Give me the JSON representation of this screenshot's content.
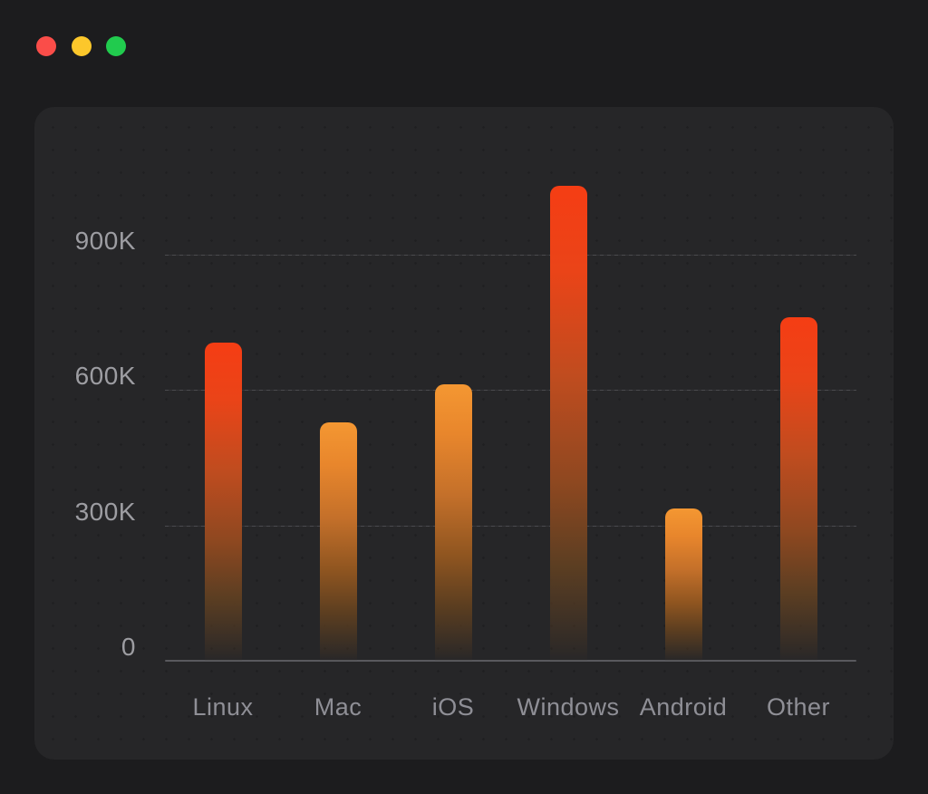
{
  "window": {
    "traffic_lights": [
      {
        "name": "close",
        "color": "#fa4d49"
      },
      {
        "name": "minimize",
        "color": "#fcc72b"
      },
      {
        "name": "zoom",
        "color": "#21cb4e"
      }
    ]
  },
  "chart_data": {
    "type": "bar",
    "title": "",
    "categories": [
      "Linux",
      "Mac",
      "iOS",
      "Windows",
      "Android",
      "Other"
    ],
    "values": [
      705000,
      527000,
      613000,
      1052000,
      337000,
      760000
    ],
    "yticks": [
      {
        "label": "0",
        "value": 0
      },
      {
        "label": "300K",
        "value": 300000
      },
      {
        "label": "600K",
        "value": 600000
      },
      {
        "label": "900K",
        "value": 900000
      }
    ],
    "ylim": [
      0,
      1100000
    ],
    "xlabel": "",
    "ylabel": "",
    "legend": "none",
    "grid": "horizontal-dashed",
    "style_rules": {
      "red_threshold": 650000
    },
    "colors": {
      "window_bg": "#1c1c1e",
      "panel_bg": "#262628",
      "axis_line": "#59595e",
      "gridline": "#515155",
      "tick_label": "#9d9da2",
      "category_label": "#8f8f96",
      "bar_gradient_red": [
        "#f53d14",
        "#ea4418",
        "#c04c1f",
        "#8f4820",
        "#5c3e22",
        "rgba(62,50,38,0.10)"
      ],
      "bar_gradient_orange": [
        "#f49732",
        "#e8862c",
        "#c4702a",
        "#8f5520",
        "#5c3e20",
        "rgba(62,50,38,0.10)"
      ]
    }
  }
}
